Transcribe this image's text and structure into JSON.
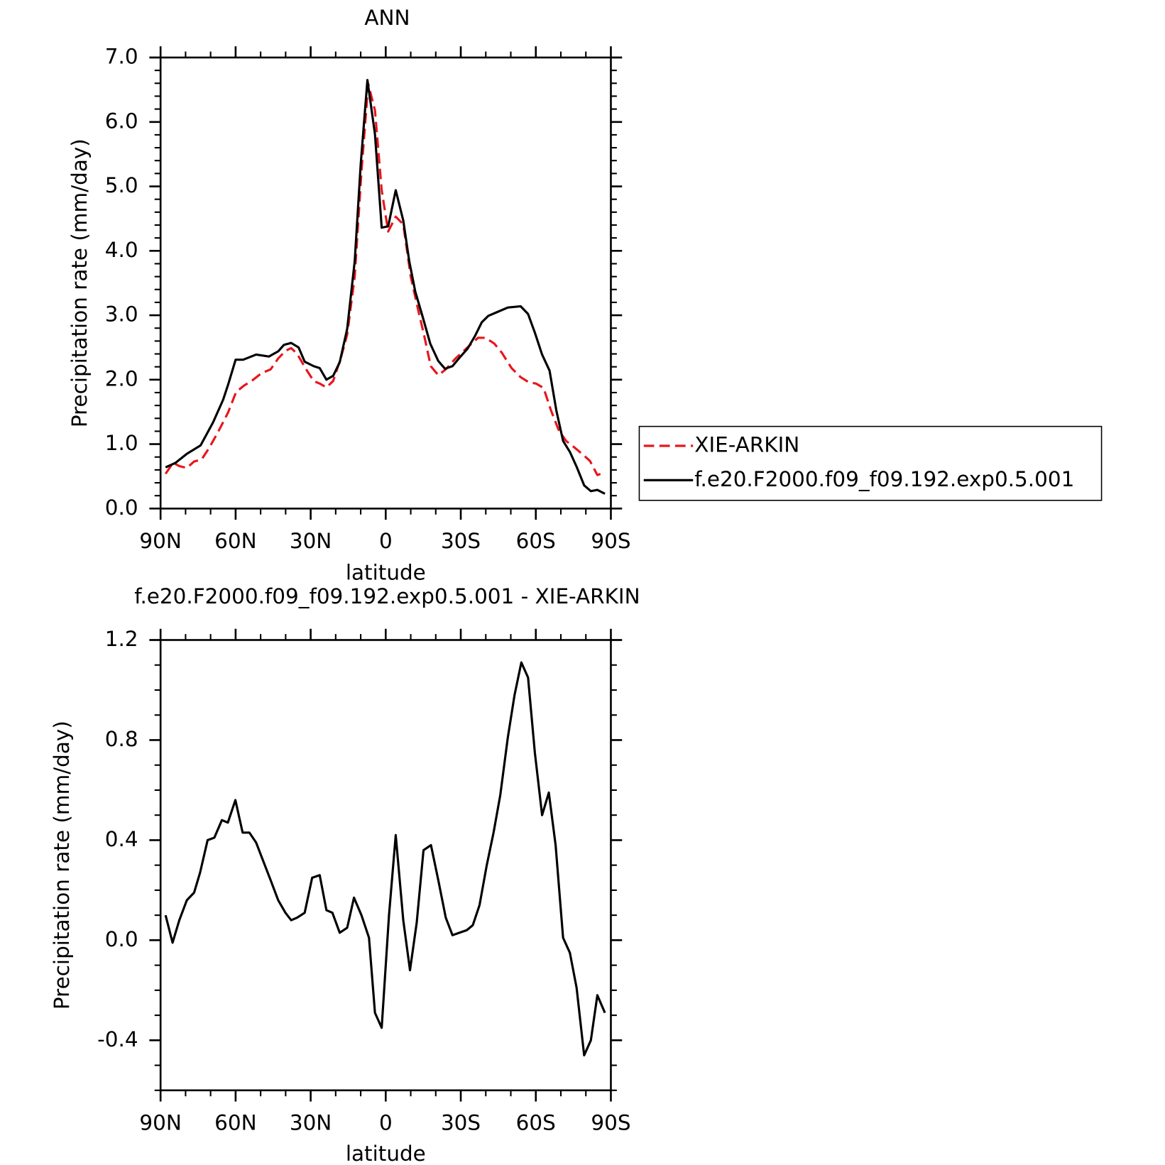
{
  "chart_data": [
    {
      "type": "line",
      "title": "ANN",
      "xlabel": "latitude",
      "ylabel": "Precipitation rate (mm/day)",
      "xlim": [
        90,
        -90
      ],
      "xticks": [
        {
          "value": 90,
          "label": "90N"
        },
        {
          "value": 60,
          "label": "60N"
        },
        {
          "value": 30,
          "label": "30N"
        },
        0,
        {
          "value": -30,
          "label": "30S"
        },
        {
          "value": -60,
          "label": "60S"
        },
        {
          "value": -90,
          "label": "90S"
        }
      ],
      "ylim": [
        0,
        7
      ],
      "yticks": [
        {
          "value": 0,
          "label": "0.0"
        },
        {
          "value": 1,
          "label": "1.0"
        },
        {
          "value": 2,
          "label": "2.0"
        },
        {
          "value": 3,
          "label": "3.0"
        },
        {
          "value": 4,
          "label": "4.0"
        },
        {
          "value": 5,
          "label": "5.0"
        },
        {
          "value": 6,
          "label": "6.0"
        },
        {
          "value": 7,
          "label": "7.0"
        }
      ],
      "legend": "outside-right",
      "series": [
        {
          "name": "XIE-ARKIN",
          "color": "#e8161b",
          "dash": true,
          "x": [
            88,
            85,
            82.5,
            79.5,
            76.6,
            73.6,
            70.6,
            67,
            63,
            59.8,
            56.6,
            53.6,
            49.7,
            46,
            43,
            40,
            37.8,
            35.4,
            31.8,
            28.8,
            26.4,
            23.7,
            21,
            18,
            15.4,
            12.4,
            9.7,
            7,
            4.3,
            1.6,
            -1,
            -4,
            -7,
            -10,
            -13,
            -15.4,
            -18,
            -21,
            -24,
            -27.9,
            -32.4,
            -36.9,
            -39.9,
            -43.4,
            -46.4,
            -50.3,
            -53.9,
            -57.2,
            -60.1,
            -63.1,
            -66.1,
            -69.1,
            -72.1,
            -75.7,
            -79.3,
            -81.6,
            -84.6,
            -87.6
          ],
          "values": [
            0.54,
            0.71,
            0.66,
            0.63,
            0.73,
            0.76,
            0.94,
            1.19,
            1.49,
            1.81,
            1.91,
            1.98,
            2.1,
            2.16,
            2.33,
            2.45,
            2.49,
            2.4,
            2.16,
            1.98,
            1.94,
            1.88,
            1.98,
            2.33,
            2.7,
            3.6,
            5.23,
            6.59,
            6.18,
            4.94,
            4.3,
            4.53,
            4.41,
            3.6,
            3.08,
            2.68,
            2.21,
            2.07,
            2.16,
            2.33,
            2.49,
            2.65,
            2.65,
            2.56,
            2.42,
            2.18,
            2.04,
            1.96,
            1.94,
            1.87,
            1.52,
            1.22,
            1.05,
            0.94,
            0.82,
            0.74,
            0.52,
            0.56
          ]
        },
        {
          "name": "f.e20.F2000.f09_f09.192.exp0.5.001",
          "color": "#000000",
          "dash": false,
          "x": [
            88,
            84,
            79.5,
            74,
            69,
            65,
            63,
            60,
            57,
            51.8,
            46.7,
            43,
            40.7,
            37.8,
            34.8,
            32.4,
            28.8,
            26.4,
            23.7,
            21,
            18.4,
            15.4,
            12.4,
            10,
            7.3,
            4.3,
            1.6,
            -1,
            -4,
            -7,
            -9.4,
            -11.8,
            -14.8,
            -17.8,
            -21,
            -23.7,
            -26.7,
            -29.7,
            -32.7,
            -35.7,
            -38.4,
            -41,
            -44.6,
            -48.8,
            -53.9,
            -56.9,
            -59.6,
            -62.5,
            -65.5,
            -68.2,
            -70.9,
            -73.6,
            -76.3,
            -79.3,
            -82,
            -84.6,
            -87.6
          ],
          "values": [
            0.64,
            0.71,
            0.85,
            0.98,
            1.34,
            1.69,
            1.92,
            2.31,
            2.31,
            2.39,
            2.36,
            2.44,
            2.54,
            2.57,
            2.5,
            2.28,
            2.21,
            2.18,
            2.0,
            2.06,
            2.27,
            2.79,
            3.84,
            5.34,
            6.65,
            5.81,
            4.36,
            4.38,
            4.94,
            4.47,
            3.84,
            3.37,
            2.97,
            2.56,
            2.29,
            2.17,
            2.21,
            2.35,
            2.48,
            2.68,
            2.89,
            2.99,
            3.05,
            3.12,
            3.14,
            3.02,
            2.73,
            2.39,
            2.14,
            1.52,
            1.05,
            0.88,
            0.65,
            0.36,
            0.27,
            0.29,
            0.23
          ]
        }
      ]
    },
    {
      "type": "line",
      "title": "f.e20.F2000.f09_f09.192.exp0.5.001 - XIE-ARKIN",
      "xlabel": "latitude",
      "ylabel": "Precipitation rate (mm/day)",
      "xlim": [
        90,
        -90
      ],
      "xticks": [
        {
          "value": 90,
          "label": "90N"
        },
        {
          "value": 60,
          "label": "60N"
        },
        {
          "value": 30,
          "label": "30N"
        },
        0,
        {
          "value": -30,
          "label": "30S"
        },
        {
          "value": -60,
          "label": "60S"
        },
        {
          "value": -90,
          "label": "90S"
        }
      ],
      "ylim": [
        -0.6,
        1.2
      ],
      "yticks": [
        -0.4,
        {
          "value": 0,
          "label": "0.0"
        },
        0.4,
        0.8,
        1.2
      ],
      "series": [
        {
          "color": "#000000",
          "dash": false,
          "x": [
            88,
            85.2,
            82.5,
            79.5,
            76.6,
            74.2,
            71.2,
            68.5,
            65.5,
            63.1,
            60.1,
            57.2,
            54.5,
            51.8,
            49.1,
            46,
            43,
            40.1,
            37.8,
            35.4,
            32.4,
            29.4,
            26.4,
            23.7,
            21.3,
            18.4,
            15.4,
            12.7,
            9.7,
            6.7,
            4.3,
            1.6,
            -1.3,
            -4,
            -7,
            -9.7,
            -12.4,
            -15.1,
            -18.1,
            -21,
            -24,
            -26.7,
            -29.4,
            -32.4,
            -34.8,
            -37.5,
            -40.4,
            -43.1,
            -45.8,
            -48.8,
            -51.5,
            -54.2,
            -56.9,
            -59.6,
            -62.5,
            -65.2,
            -67.9,
            -70.9,
            -73.6,
            -76.3,
            -79.3,
            -82,
            -84.6,
            -87.6
          ],
          "values": [
            0.1,
            -0.01,
            0.08,
            0.16,
            0.19,
            0.27,
            0.4,
            0.41,
            0.48,
            0.47,
            0.56,
            0.43,
            0.43,
            0.39,
            0.32,
            0.24,
            0.16,
            0.11,
            0.08,
            0.09,
            0.11,
            0.25,
            0.26,
            0.12,
            0.11,
            0.03,
            0.05,
            0.17,
            0.1,
            0.01,
            -0.29,
            -0.35,
            0.1,
            0.42,
            0.08,
            -0.12,
            0.07,
            0.36,
            0.38,
            0.24,
            0.09,
            0.02,
            0.03,
            0.04,
            0.06,
            0.14,
            0.3,
            0.43,
            0.58,
            0.81,
            0.98,
            1.11,
            1.05,
            0.75,
            0.5,
            0.59,
            0.38,
            0.01,
            -0.05,
            -0.19,
            -0.46,
            -0.4,
            -0.22,
            -0.29
          ]
        }
      ]
    }
  ]
}
